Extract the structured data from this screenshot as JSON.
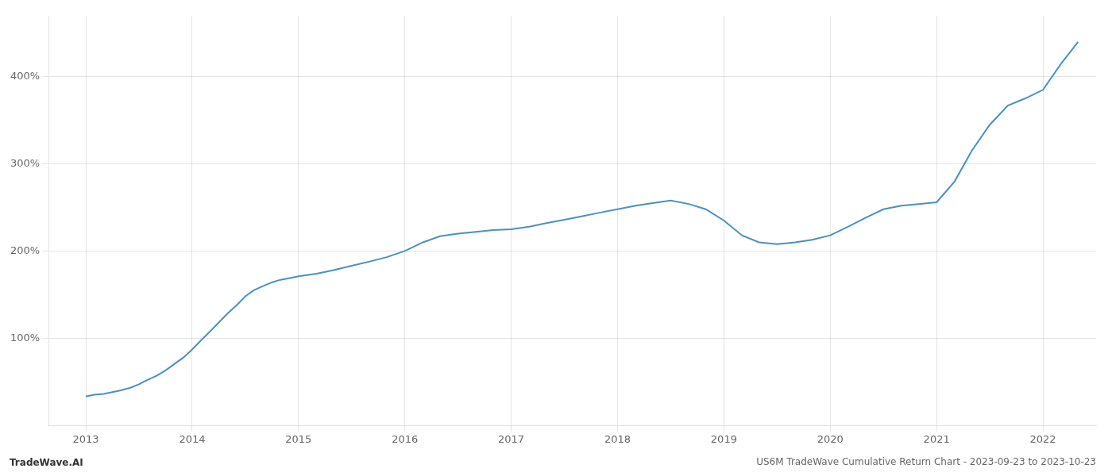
{
  "chart_data": {
    "type": "line",
    "title": "US6M TradeWave Cumulative Return Chart - 2023-09-23 to 2023-10-23",
    "annotations": [
      "TradeWave.AI"
    ],
    "x": [
      2013.0,
      2013.08,
      2013.17,
      2013.25,
      2013.33,
      2013.42,
      2013.5,
      2013.58,
      2013.67,
      2013.75,
      2013.83,
      2013.92,
      2014.0,
      2014.08,
      2014.17,
      2014.25,
      2014.33,
      2014.42,
      2014.5,
      2014.58,
      2014.67,
      2014.75,
      2014.83,
      2014.92,
      2015.0,
      2015.17,
      2015.33,
      2015.5,
      2015.67,
      2015.83,
      2016.0,
      2016.17,
      2016.33,
      2016.5,
      2016.67,
      2016.83,
      2017.0,
      2017.17,
      2017.33,
      2017.5,
      2017.67,
      2017.83,
      2018.0,
      2018.17,
      2018.33,
      2018.5,
      2018.67,
      2018.83,
      2019.0,
      2019.17,
      2019.33,
      2019.5,
      2019.67,
      2019.83,
      2020.0,
      2020.17,
      2020.33,
      2020.5,
      2020.67,
      2020.83,
      2021.0,
      2021.17,
      2021.33,
      2021.5,
      2021.67,
      2021.83,
      2022.0,
      2022.17,
      2022.33
    ],
    "values": [
      33,
      35,
      36,
      38,
      40,
      43,
      47,
      52,
      57,
      63,
      70,
      78,
      87,
      97,
      108,
      118,
      128,
      138,
      148,
      155,
      160,
      164,
      167,
      169,
      171,
      174,
      178,
      183,
      188,
      193,
      200,
      210,
      217,
      220,
      222,
      224,
      225,
      228,
      232,
      236,
      240,
      244,
      248,
      252,
      255,
      258,
      254,
      248,
      235,
      218,
      210,
      208,
      210,
      213,
      218,
      228,
      238,
      248,
      252,
      254,
      256,
      280,
      315,
      345,
      367,
      375,
      385,
      415,
      440
    ],
    "color": "#4a90c4",
    "xlim": [
      2012.65,
      2022.5
    ],
    "xticks": [
      2013,
      2014,
      2015,
      2016,
      2017,
      2018,
      2019,
      2020,
      2021,
      2022
    ],
    "ylim": [
      0,
      470
    ],
    "yticks": [
      {
        "value": 100,
        "label": "100%"
      },
      {
        "value": 200,
        "label": "200%"
      },
      {
        "value": 300,
        "label": "300%"
      },
      {
        "value": 400,
        "label": "400%"
      }
    ],
    "grid": true
  }
}
